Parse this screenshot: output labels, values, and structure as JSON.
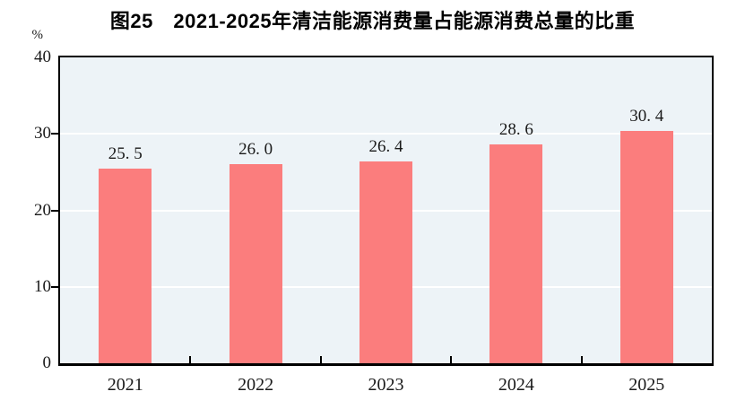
{
  "colors": {
    "bar": "#FB7D7D",
    "plot_background": "#EDF3F7",
    "gridline": "#FFFFFF",
    "axis": "#000000",
    "text": "#1A1A1A"
  },
  "chart_data": {
    "type": "bar",
    "title": "图25　2021-2025年清洁能源消费量占能源消费总量的比重",
    "categories": [
      "2021",
      "2022",
      "2023",
      "2024",
      "2025"
    ],
    "values": [
      25.5,
      26.0,
      26.4,
      28.6,
      30.4
    ],
    "bar_labels": [
      "25. 5",
      "26. 0",
      "26. 4",
      "28. 6",
      "30. 4"
    ],
    "xlabel": "",
    "ylabel": "%",
    "ylim": [
      0,
      40
    ],
    "yticks": [
      0,
      10,
      20,
      30,
      40
    ],
    "gridline_values": [
      10,
      20,
      30
    ],
    "grid": "horizontal",
    "legend_position": "none"
  }
}
